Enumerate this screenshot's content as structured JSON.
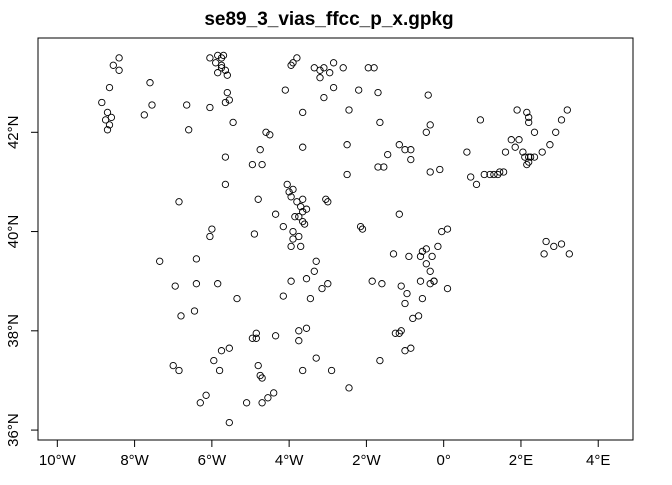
{
  "chart_data": {
    "type": "scatter",
    "title": "se89_3_vias_ffcc_p_x.gpkg",
    "xlabel": "",
    "ylabel": "",
    "xlim": [
      -10.5,
      4.9
    ],
    "ylim": [
      35.8,
      43.9
    ],
    "grid": false,
    "legend": "none",
    "point_color": "#000000",
    "x_ticks": [
      {
        "value": -10,
        "label": "10°W"
      },
      {
        "value": -8,
        "label": "8°W"
      },
      {
        "value": -6,
        "label": "6°W"
      },
      {
        "value": -4,
        "label": "4°W"
      },
      {
        "value": -2,
        "label": "2°W"
      },
      {
        "value": 0,
        "label": "0°"
      },
      {
        "value": 2,
        "label": "2°E"
      },
      {
        "value": 4,
        "label": "4°E"
      }
    ],
    "y_ticks": [
      {
        "value": 36,
        "label": "36°N"
      },
      {
        "value": 38,
        "label": "38°N"
      },
      {
        "value": 40,
        "label": "40°N"
      },
      {
        "value": 42,
        "label": "42°N"
      }
    ],
    "points": [
      [
        -8.4,
        43.5
      ],
      [
        -8.55,
        43.35
      ],
      [
        -8.4,
        43.25
      ],
      [
        -7.6,
        43.0
      ],
      [
        -8.65,
        42.9
      ],
      [
        -8.85,
        42.6
      ],
      [
        -8.7,
        42.4
      ],
      [
        -8.75,
        42.25
      ],
      [
        -8.65,
        42.15
      ],
      [
        -8.7,
        42.05
      ],
      [
        -8.6,
        42.3
      ],
      [
        -7.75,
        42.35
      ],
      [
        -7.55,
        42.55
      ],
      [
        -6.65,
        42.55
      ],
      [
        -6.6,
        42.05
      ],
      [
        -6.05,
        42.5
      ],
      [
        -6.05,
        43.5
      ],
      [
        -5.9,
        43.4
      ],
      [
        -5.85,
        43.55
      ],
      [
        -5.75,
        43.5
      ],
      [
        -5.7,
        43.55
      ],
      [
        -5.75,
        43.35
      ],
      [
        -5.85,
        43.2
      ],
      [
        -5.65,
        43.25
      ],
      [
        -5.6,
        43.15
      ],
      [
        -5.75,
        43.3
      ],
      [
        -5.6,
        42.8
      ],
      [
        -5.55,
        42.65
      ],
      [
        -5.65,
        42.6
      ],
      [
        -5.45,
        42.2
      ],
      [
        -3.9,
        43.4
      ],
      [
        -3.8,
        43.5
      ],
      [
        -3.95,
        43.35
      ],
      [
        -4.1,
        42.85
      ],
      [
        -3.35,
        43.3
      ],
      [
        -3.2,
        43.25
      ],
      [
        -3.1,
        43.3
      ],
      [
        -3.2,
        43.1
      ],
      [
        -2.95,
        43.2
      ],
      [
        -2.85,
        43.4
      ],
      [
        -2.6,
        43.3
      ],
      [
        -1.95,
        43.3
      ],
      [
        -1.8,
        43.3
      ],
      [
        -2.2,
        42.85
      ],
      [
        -2.85,
        42.9
      ],
      [
        -3.1,
        42.7
      ],
      [
        -1.7,
        42.8
      ],
      [
        -2.45,
        42.45
      ],
      [
        -3.65,
        42.4
      ],
      [
        -4.6,
        42.0
      ],
      [
        -4.5,
        41.95
      ],
      [
        -4.75,
        41.65
      ],
      [
        -4.7,
        41.35
      ],
      [
        -4.95,
        41.35
      ],
      [
        -5.65,
        41.5
      ],
      [
        -3.65,
        41.7
      ],
      [
        -2.5,
        41.75
      ],
      [
        -1.65,
        42.2
      ],
      [
        -1.15,
        41.75
      ],
      [
        -1.0,
        41.65
      ],
      [
        -0.85,
        41.65
      ],
      [
        -1.45,
        41.55
      ],
      [
        -1.7,
        41.3
      ],
      [
        -1.55,
        41.3
      ],
      [
        -0.85,
        41.45
      ],
      [
        -0.35,
        42.15
      ],
      [
        -0.45,
        42.0
      ],
      [
        -0.4,
        42.75
      ],
      [
        0.95,
        42.25
      ],
      [
        1.9,
        42.45
      ],
      [
        2.15,
        42.4
      ],
      [
        2.2,
        42.3
      ],
      [
        2.2,
        42.2
      ],
      [
        2.35,
        42.0
      ],
      [
        1.75,
        41.85
      ],
      [
        1.95,
        41.85
      ],
      [
        1.85,
        41.7
      ],
      [
        1.6,
        41.6
      ],
      [
        2.05,
        41.6
      ],
      [
        2.1,
        41.5
      ],
      [
        2.2,
        41.5
      ],
      [
        2.25,
        41.5
      ],
      [
        2.35,
        41.5
      ],
      [
        2.2,
        41.4
      ],
      [
        2.15,
        41.35
      ],
      [
        2.55,
        41.6
      ],
      [
        2.75,
        41.75
      ],
      [
        2.9,
        42.0
      ],
      [
        3.05,
        42.25
      ],
      [
        3.2,
        42.45
      ],
      [
        0.6,
        41.6
      ],
      [
        0.7,
        41.1
      ],
      [
        0.85,
        40.95
      ],
      [
        1.05,
        41.15
      ],
      [
        1.2,
        41.15
      ],
      [
        1.3,
        41.15
      ],
      [
        1.45,
        41.2
      ],
      [
        1.55,
        41.2
      ],
      [
        1.4,
        41.15
      ],
      [
        -0.35,
        41.2
      ],
      [
        -0.1,
        41.25
      ],
      [
        -2.5,
        41.15
      ],
      [
        -1.15,
        40.35
      ],
      [
        -0.05,
        40.0
      ],
      [
        0.1,
        40.05
      ],
      [
        -4.8,
        40.65
      ],
      [
        -6.85,
        40.6
      ],
      [
        -5.65,
        40.95
      ],
      [
        -6.0,
        40.05
      ],
      [
        -6.05,
        39.9
      ],
      [
        -4.9,
        39.95
      ],
      [
        -4.05,
        40.95
      ],
      [
        -4.0,
        40.8
      ],
      [
        -3.9,
        40.85
      ],
      [
        -3.95,
        40.7
      ],
      [
        -3.8,
        40.6
      ],
      [
        -3.65,
        40.65
      ],
      [
        -3.7,
        40.5
      ],
      [
        -3.65,
        40.4
      ],
      [
        -3.55,
        40.45
      ],
      [
        -3.75,
        40.3
      ],
      [
        -3.85,
        40.3
      ],
      [
        -3.65,
        40.2
      ],
      [
        -3.6,
        40.15
      ],
      [
        -3.9,
        40.0
      ],
      [
        -3.75,
        39.9
      ],
      [
        -3.9,
        39.85
      ],
      [
        -3.7,
        39.7
      ],
      [
        -3.95,
        39.7
      ],
      [
        -4.35,
        40.35
      ],
      [
        -4.15,
        40.1
      ],
      [
        -3.05,
        40.65
      ],
      [
        -3.0,
        40.6
      ],
      [
        -2.15,
        40.1
      ],
      [
        -2.1,
        40.05
      ],
      [
        -3.95,
        39.0
      ],
      [
        -3.3,
        39.4
      ],
      [
        -3.35,
        39.2
      ],
      [
        -3.55,
        39.05
      ],
      [
        -3.0,
        38.95
      ],
      [
        -3.15,
        38.85
      ],
      [
        -3.45,
        38.65
      ],
      [
        -4.15,
        38.7
      ],
      [
        -1.85,
        39.0
      ],
      [
        -1.6,
        38.95
      ],
      [
        -1.3,
        39.55
      ],
      [
        -0.9,
        39.5
      ],
      [
        -0.55,
        39.6
      ],
      [
        -0.6,
        39.5
      ],
      [
        -0.45,
        39.65
      ],
      [
        -0.3,
        39.5
      ],
      [
        -0.15,
        39.7
      ],
      [
        -0.45,
        39.35
      ],
      [
        -0.35,
        39.2
      ],
      [
        -0.6,
        39.0
      ],
      [
        -0.35,
        38.95
      ],
      [
        -0.25,
        39.0
      ],
      [
        -0.25,
        39.0
      ],
      [
        0.1,
        38.85
      ],
      [
        -1.1,
        38.9
      ],
      [
        -0.95,
        38.75
      ],
      [
        -1.0,
        38.55
      ],
      [
        -0.55,
        38.65
      ],
      [
        -0.65,
        38.3
      ],
      [
        -0.8,
        38.25
      ],
      [
        -1.1,
        38.0
      ],
      [
        -1.15,
        37.95
      ],
      [
        -1.25,
        37.95
      ],
      [
        -1.0,
        37.6
      ],
      [
        -0.85,
        37.65
      ],
      [
        -1.65,
        37.4
      ],
      [
        2.65,
        39.8
      ],
      [
        2.85,
        39.7
      ],
      [
        3.05,
        39.75
      ],
      [
        2.6,
        39.55
      ],
      [
        3.25,
        39.55
      ],
      [
        -7.35,
        39.4
      ],
      [
        -6.4,
        39.45
      ],
      [
        -6.95,
        38.9
      ],
      [
        -6.4,
        38.95
      ],
      [
        -5.85,
        38.95
      ],
      [
        -5.35,
        38.65
      ],
      [
        -6.8,
        38.3
      ],
      [
        -6.45,
        38.4
      ],
      [
        -4.95,
        37.85
      ],
      [
        -4.85,
        37.95
      ],
      [
        -4.85,
        37.85
      ],
      [
        -3.75,
        38.0
      ],
      [
        -3.55,
        38.05
      ],
      [
        -3.75,
        37.8
      ],
      [
        -4.35,
        37.9
      ],
      [
        -3.3,
        37.45
      ],
      [
        -2.9,
        37.2
      ],
      [
        -3.65,
        37.2
      ],
      [
        -5.95,
        37.4
      ],
      [
        -5.75,
        37.6
      ],
      [
        -5.55,
        37.65
      ],
      [
        -5.8,
        37.2
      ],
      [
        -7.0,
        37.3
      ],
      [
        -6.85,
        37.2
      ],
      [
        -6.15,
        36.7
      ],
      [
        -6.3,
        36.55
      ],
      [
        -5.1,
        36.55
      ],
      [
        -4.8,
        37.3
      ],
      [
        -4.75,
        37.1
      ],
      [
        -4.7,
        37.05
      ],
      [
        -4.7,
        36.55
      ],
      [
        -4.55,
        36.65
      ],
      [
        -4.4,
        36.75
      ],
      [
        -2.45,
        36.85
      ],
      [
        -5.55,
        36.15
      ]
    ]
  }
}
